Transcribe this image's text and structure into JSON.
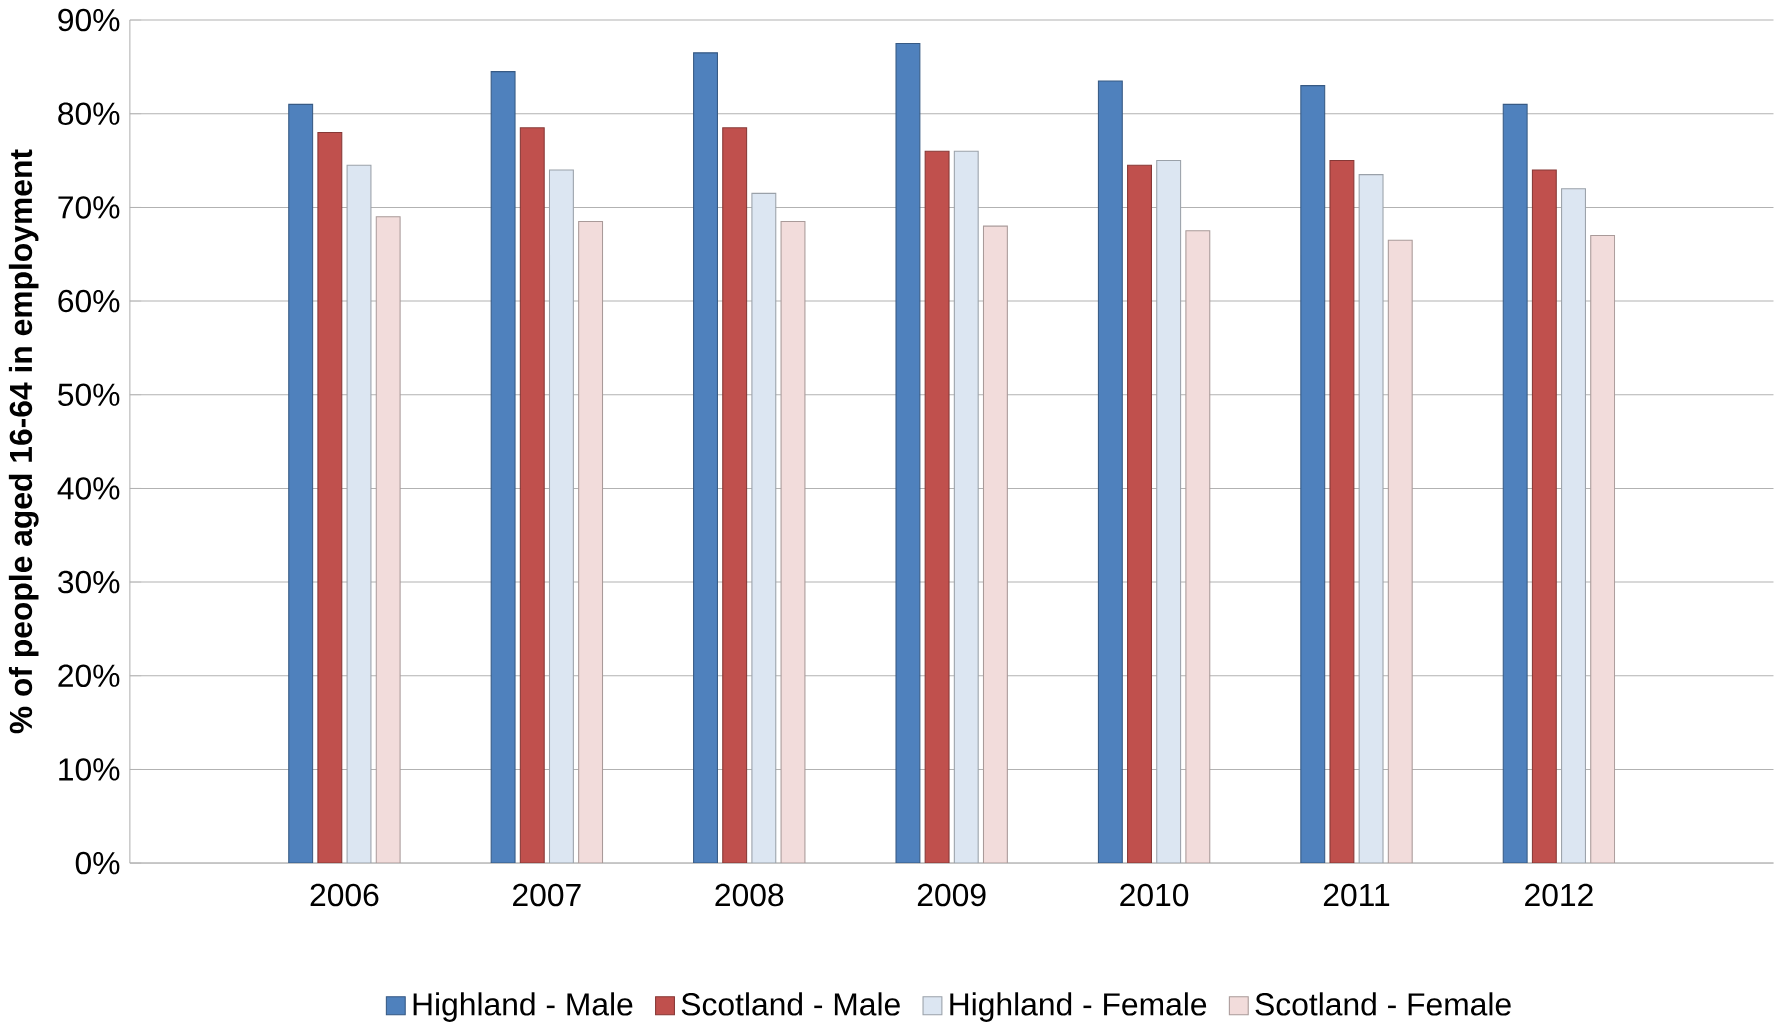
{
  "chart_data": {
    "type": "bar",
    "ylabel": "% of people aged 16-64 in employment",
    "categories": [
      "2006",
      "2007",
      "2008",
      "2009",
      "2010",
      "2011",
      "2012"
    ],
    "series": [
      {
        "name": "Highland - Male",
        "color": "#4f81bd",
        "values": [
          81,
          84.5,
          86.5,
          87.5,
          83.5,
          83,
          81
        ]
      },
      {
        "name": "Scotland - Male",
        "color": "#c0504d",
        "values": [
          78,
          78.5,
          78.5,
          76,
          74.5,
          75,
          74
        ]
      },
      {
        "name": "Highland - Female",
        "color": "#dce6f2",
        "values": [
          74.5,
          74,
          71.5,
          76,
          75,
          73.5,
          72
        ]
      },
      {
        "name": "Scotland - Female",
        "color": "#f2dcdb",
        "values": [
          69,
          68.5,
          68.5,
          68,
          67.5,
          66.5,
          67
        ]
      }
    ],
    "ylim": [
      0,
      90
    ],
    "yticks": [
      {
        "value": 0,
        "label": "0%"
      },
      {
        "value": 10,
        "label": "10%"
      },
      {
        "value": 20,
        "label": "20%"
      },
      {
        "value": 30,
        "label": "30%"
      },
      {
        "value": 40,
        "label": "40%"
      },
      {
        "value": 50,
        "label": "50%"
      },
      {
        "value": 60,
        "label": "60%"
      },
      {
        "value": 70,
        "label": "70%"
      },
      {
        "value": 80,
        "label": "80%"
      },
      {
        "value": 90,
        "label": "90%"
      }
    ],
    "grid": "y",
    "legend": "bottom"
  }
}
